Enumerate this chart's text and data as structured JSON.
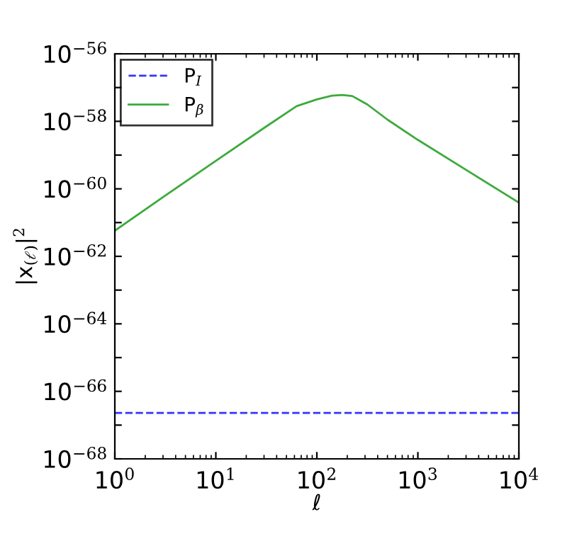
{
  "chart_data": {
    "type": "line",
    "xlabel": "ℓ",
    "ylabel": "|x$_{(ℓ)}$|$^{2}$",
    "log": "xy",
    "legend": "top left",
    "grid": false,
    "series": [
      {
        "name": "P$_{I}$",
        "color": "#3333ff",
        "line_style": "dashed",
        "x": [
          1,
          10000
        ],
        "values": [
          2.3e-67,
          2.3e-67
        ]
      },
      {
        "name": "P$_{β}$",
        "color": "#3cab3c",
        "line_style": "solid",
        "x": [
          1,
          3.16,
          10,
          31.6,
          63.1,
          100,
          141,
          178,
          224,
          316,
          501,
          1000,
          3162,
          10000
        ],
        "values": [
          5.75e-62,
          6.31e-61,
          6.76e-60,
          7.08e-59,
          2.82e-58,
          4.47e-58,
          5.75e-58,
          6.03e-58,
          5.62e-58,
          3.16e-58,
          1.12e-58,
          2.82e-59,
          3.31e-60,
          3.89e-61
        ]
      }
    ],
    "xlim": [
      1,
      10000
    ],
    "ylim": [
      1e-68,
      1e-56
    ],
    "xticks": [
      {
        "value": 1,
        "label": "10$^{0}$"
      },
      {
        "value": 10,
        "label": "10$^{1}$"
      },
      {
        "value": 100,
        "label": "10$^{2}$"
      },
      {
        "value": 1000,
        "label": "10$^{3}$"
      },
      {
        "value": 10000,
        "label": "10$^{4}$"
      }
    ],
    "yticks": [
      {
        "value": 1e-68,
        "label": "10$^{−68}$"
      },
      {
        "value": 1e-67,
        "label": null
      },
      {
        "value": 1e-66,
        "label": "10$^{−66}$"
      },
      {
        "value": 1e-65,
        "label": null
      },
      {
        "value": 1e-64,
        "label": "10$^{−64}$"
      },
      {
        "value": 1e-63,
        "label": null
      },
      {
        "value": 1e-62,
        "label": "10$^{−62}$"
      },
      {
        "value": 1e-61,
        "label": null
      },
      {
        "value": 1e-60,
        "label": "10$^{−60}$"
      },
      {
        "value": 1e-59,
        "label": null
      },
      {
        "value": 1e-58,
        "label": "10$^{−58}$"
      },
      {
        "value": 1e-57,
        "label": null
      },
      {
        "value": 1e-56,
        "label": "10$^{−56}$"
      }
    ]
  }
}
